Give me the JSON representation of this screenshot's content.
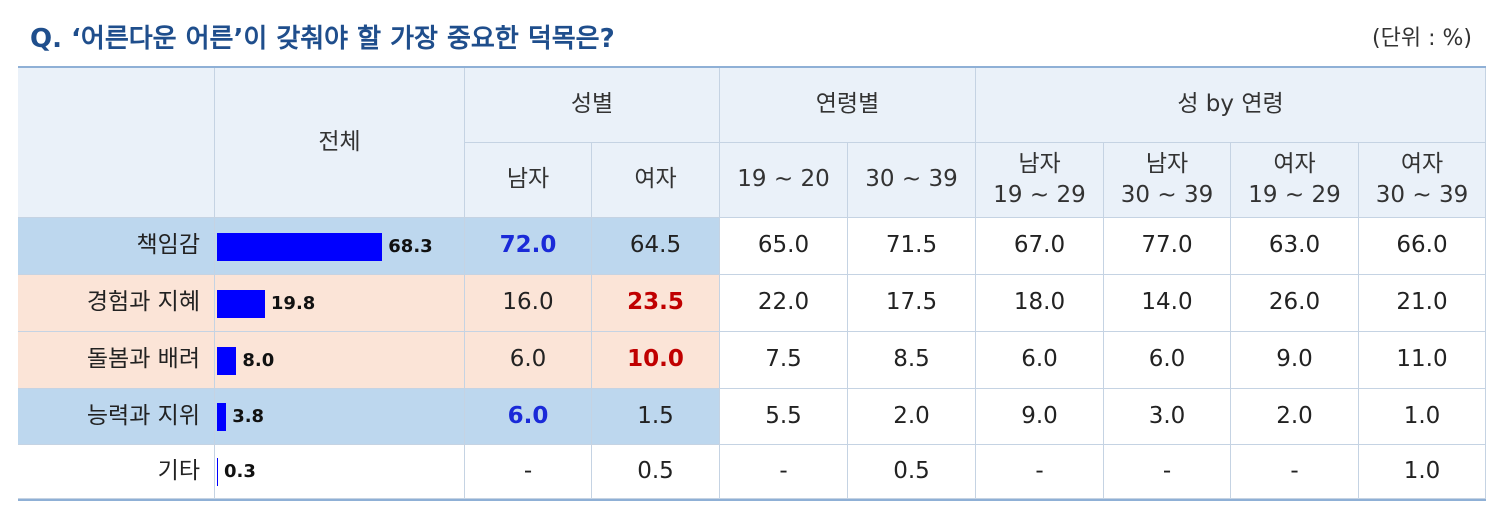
{
  "header": {
    "title": "Q. ‘어른다운 어른’이 갖춰야 할 가장 중요한 덕목은?",
    "unit": "(단위 : %)"
  },
  "table": {
    "total_header": "전체",
    "bar_color": "#0000ff",
    "groups": [
      {
        "label": "성별",
        "columns": [
          "남자",
          "여자"
        ]
      },
      {
        "label": "연령별",
        "columns": [
          "19 ~ 20",
          "30 ~ 39"
        ]
      },
      {
        "label": "성 by 연령",
        "columns": [
          "남자\n19 ~ 29",
          "남자\n30 ~ 39",
          "여자\n19 ~ 29",
          "여자\n30 ~ 39"
        ]
      }
    ],
    "rows": [
      {
        "label": "책임감",
        "color": "#bdd7ee",
        "total": {
          "value": 68.3,
          "label": "68.3"
        },
        "cells": [
          {
            "text": "72.0",
            "color": "#1a2ad8"
          },
          "64.5",
          "65.0",
          "71.5",
          "67.0",
          "77.0",
          "63.0",
          "66.0"
        ]
      },
      {
        "label": "경험과 지혜",
        "color": "#fbe4d7",
        "total": {
          "value": 19.8,
          "label": "19.8"
        },
        "cells": [
          "16.0",
          {
            "text": "23.5",
            "color": "#c00000"
          },
          "22.0",
          "17.5",
          "18.0",
          "14.0",
          "26.0",
          "21.0"
        ]
      },
      {
        "label": "돌봄과 배려",
        "color": "#fbe4d7",
        "total": {
          "value": 8,
          "label": "8.0"
        },
        "cells": [
          "6.0",
          {
            "text": "10.0",
            "color": "#c00000"
          },
          "7.5",
          "8.5",
          "6.0",
          "6.0",
          "9.0",
          "11.0"
        ]
      },
      {
        "label": "능력과 지위",
        "color": "#bdd7ee",
        "total": {
          "value": 3.8,
          "label": "3.8"
        },
        "cells": [
          {
            "text": "6.0",
            "color": "#1a2ad8"
          },
          "1.5",
          "5.5",
          "2.0",
          "9.0",
          "3.0",
          "2.0",
          "1.0"
        ]
      },
      {
        "label": "기타",
        "color": "#ffffff",
        "total": {
          "value": 0.3,
          "label": "0.3"
        },
        "cells": [
          "-",
          "0.5",
          "-",
          "0.5",
          "-",
          "-",
          "-",
          "1.0"
        ]
      }
    ]
  }
}
